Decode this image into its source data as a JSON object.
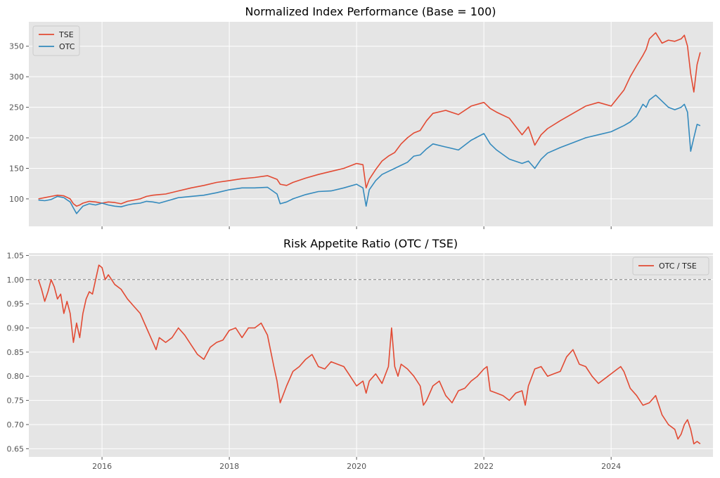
{
  "colors": {
    "tse": "#E24A33",
    "otc": "#348ABD",
    "ratio": "#E24A33",
    "plot_bg": "#E5E5E5",
    "grid": "#FFFFFF",
    "reference_line": "#808080"
  },
  "chart_data": [
    {
      "type": "line",
      "title": "Normalized Index Performance (Base = 100)",
      "xlabel": "",
      "ylabel": "",
      "x_range": [
        2014.85,
        2025.6
      ],
      "ylim": [
        55,
        390
      ],
      "y_ticks": [
        100,
        150,
        200,
        250,
        300,
        350
      ],
      "x_ticks": [
        2016,
        2018,
        2020,
        2022,
        2024
      ],
      "x_tick_labels_visible": false,
      "grid": true,
      "legend": "top-left",
      "series": [
        {
          "name": "TSE",
          "color": "#E24A33",
          "x": [
            2015.0,
            2015.1,
            2015.2,
            2015.3,
            2015.4,
            2015.5,
            2015.55,
            2015.6,
            2015.65,
            2015.7,
            2015.8,
            2015.9,
            2016.0,
            2016.1,
            2016.2,
            2016.3,
            2016.4,
            2016.5,
            2016.6,
            2016.7,
            2016.8,
            2016.9,
            2017.0,
            2017.2,
            2017.4,
            2017.6,
            2017.8,
            2018.0,
            2018.2,
            2018.4,
            2018.6,
            2018.75,
            2018.8,
            2018.9,
            2019.0,
            2019.2,
            2019.4,
            2019.6,
            2019.8,
            2020.0,
            2020.1,
            2020.15,
            2020.2,
            2020.3,
            2020.4,
            2020.5,
            2020.6,
            2020.7,
            2020.8,
            2020.9,
            2021.0,
            2021.1,
            2021.2,
            2021.4,
            2021.6,
            2021.8,
            2022.0,
            2022.1,
            2022.2,
            2022.4,
            2022.6,
            2022.7,
            2022.8,
            2022.9,
            2023.0,
            2023.2,
            2023.4,
            2023.6,
            2023.8,
            2024.0,
            2024.2,
            2024.3,
            2024.4,
            2024.5,
            2024.55,
            2024.6,
            2024.7,
            2024.8,
            2024.9,
            2025.0,
            2025.1,
            2025.15,
            2025.2,
            2025.25,
            2025.3,
            2025.35,
            2025.4
          ],
          "values": [
            100,
            102,
            104,
            106,
            105,
            100,
            92,
            88,
            90,
            93,
            96,
            95,
            93,
            95,
            94,
            92,
            96,
            98,
            100,
            104,
            106,
            107,
            108,
            113,
            118,
            122,
            127,
            130,
            133,
            135,
            138,
            132,
            124,
            122,
            127,
            134,
            140,
            145,
            150,
            158,
            156,
            118,
            132,
            148,
            162,
            170,
            176,
            190,
            200,
            208,
            212,
            228,
            240,
            245,
            238,
            252,
            258,
            248,
            242,
            232,
            205,
            218,
            188,
            205,
            215,
            228,
            240,
            252,
            258,
            252,
            278,
            300,
            318,
            335,
            345,
            362,
            372,
            355,
            360,
            358,
            362,
            368,
            350,
            305,
            275,
            320,
            340
          ]
        },
        {
          "name": "OTC",
          "color": "#348ABD",
          "x": [
            2015.0,
            2015.1,
            2015.2,
            2015.3,
            2015.4,
            2015.5,
            2015.55,
            2015.6,
            2015.65,
            2015.7,
            2015.8,
            2015.9,
            2016.0,
            2016.1,
            2016.2,
            2016.3,
            2016.4,
            2016.5,
            2016.6,
            2016.7,
            2016.8,
            2016.9,
            2017.0,
            2017.2,
            2017.4,
            2017.6,
            2017.8,
            2018.0,
            2018.2,
            2018.4,
            2018.6,
            2018.75,
            2018.8,
            2018.9,
            2019.0,
            2019.2,
            2019.4,
            2019.6,
            2019.8,
            2020.0,
            2020.1,
            2020.15,
            2020.2,
            2020.3,
            2020.4,
            2020.5,
            2020.6,
            2020.7,
            2020.8,
            2020.9,
            2021.0,
            2021.1,
            2021.2,
            2021.4,
            2021.6,
            2021.8,
            2022.0,
            2022.1,
            2022.2,
            2022.4,
            2022.6,
            2022.7,
            2022.8,
            2022.9,
            2023.0,
            2023.2,
            2023.4,
            2023.6,
            2023.8,
            2024.0,
            2024.2,
            2024.3,
            2024.4,
            2024.5,
            2024.55,
            2024.6,
            2024.7,
            2024.8,
            2024.9,
            2025.0,
            2025.1,
            2025.15,
            2025.2,
            2025.25,
            2025.3,
            2025.35,
            2025.4
          ],
          "values": [
            98,
            97,
            99,
            104,
            102,
            95,
            85,
            76,
            82,
            88,
            92,
            90,
            93,
            90,
            88,
            87,
            90,
            92,
            93,
            96,
            95,
            93,
            96,
            102,
            104,
            106,
            110,
            115,
            118,
            118,
            119,
            108,
            92,
            95,
            100,
            107,
            112,
            113,
            118,
            124,
            118,
            88,
            115,
            130,
            140,
            145,
            150,
            155,
            160,
            170,
            172,
            182,
            190,
            185,
            180,
            196,
            207,
            190,
            180,
            165,
            158,
            162,
            150,
            165,
            175,
            184,
            192,
            200,
            205,
            210,
            220,
            226,
            236,
            255,
            250,
            262,
            270,
            260,
            250,
            246,
            250,
            255,
            242,
            178,
            200,
            222,
            220
          ]
        }
      ]
    },
    {
      "type": "line",
      "title": "Risk Appetite Ratio (OTC / TSE)",
      "xlabel": "",
      "ylabel": "",
      "x_range": [
        2014.85,
        2025.6
      ],
      "ylim": [
        0.633,
        1.055
      ],
      "y_ticks": [
        0.65,
        0.7,
        0.75,
        0.8,
        0.85,
        0.9,
        0.95,
        1.0,
        1.05
      ],
      "y_tick_labels": [
        "0.65",
        "0.70",
        "0.75",
        "0.80",
        "0.85",
        "0.90",
        "0.95",
        "1.00",
        "1.05"
      ],
      "x_ticks": [
        2016,
        2018,
        2020,
        2022,
        2024
      ],
      "x_tick_labels": [
        "2016",
        "2018",
        "2020",
        "2022",
        "2024"
      ],
      "reference_line": 1.0,
      "grid": true,
      "legend": "top-right",
      "series": [
        {
          "name": "OTC / TSE",
          "color": "#E24A33",
          "x": [
            2015.0,
            2015.05,
            2015.1,
            2015.15,
            2015.2,
            2015.25,
            2015.3,
            2015.35,
            2015.4,
            2015.45,
            2015.5,
            2015.55,
            2015.6,
            2015.65,
            2015.7,
            2015.75,
            2015.8,
            2015.85,
            2015.9,
            2015.95,
            2016.0,
            2016.05,
            2016.1,
            2016.15,
            2016.2,
            2016.3,
            2016.4,
            2016.5,
            2016.6,
            2016.7,
            2016.8,
            2016.85,
            2016.9,
            2017.0,
            2017.1,
            2017.2,
            2017.3,
            2017.4,
            2017.5,
            2017.6,
            2017.7,
            2017.8,
            2017.9,
            2018.0,
            2018.1,
            2018.2,
            2018.3,
            2018.4,
            2018.5,
            2018.6,
            2018.7,
            2018.75,
            2018.8,
            2018.9,
            2019.0,
            2019.1,
            2019.2,
            2019.3,
            2019.4,
            2019.5,
            2019.6,
            2019.7,
            2019.8,
            2019.9,
            2020.0,
            2020.1,
            2020.15,
            2020.2,
            2020.3,
            2020.4,
            2020.5,
            2020.55,
            2020.6,
            2020.65,
            2020.7,
            2020.8,
            2020.9,
            2021.0,
            2021.05,
            2021.1,
            2021.2,
            2021.3,
            2021.4,
            2021.5,
            2021.6,
            2021.7,
            2021.8,
            2021.9,
            2022.0,
            2022.05,
            2022.1,
            2022.2,
            2022.3,
            2022.4,
            2022.5,
            2022.6,
            2022.65,
            2022.7,
            2022.8,
            2022.9,
            2023.0,
            2023.1,
            2023.2,
            2023.3,
            2023.4,
            2023.5,
            2023.6,
            2023.7,
            2023.8,
            2023.9,
            2024.0,
            2024.1,
            2024.15,
            2024.2,
            2024.3,
            2024.4,
            2024.5,
            2024.6,
            2024.7,
            2024.8,
            2024.9,
            2025.0,
            2025.05,
            2025.1,
            2025.15,
            2025.2,
            2025.25,
            2025.3,
            2025.35,
            2025.4
          ],
          "values": [
            1.0,
            0.98,
            0.955,
            0.975,
            1.0,
            0.985,
            0.96,
            0.97,
            0.93,
            0.955,
            0.93,
            0.87,
            0.91,
            0.88,
            0.93,
            0.96,
            0.975,
            0.97,
            1.0,
            1.03,
            1.025,
            1.0,
            1.01,
            1.0,
            0.99,
            0.98,
            0.96,
            0.945,
            0.93,
            0.9,
            0.87,
            0.855,
            0.88,
            0.87,
            0.88,
            0.9,
            0.885,
            0.865,
            0.845,
            0.835,
            0.86,
            0.87,
            0.875,
            0.895,
            0.9,
            0.88,
            0.9,
            0.9,
            0.91,
            0.885,
            0.82,
            0.79,
            0.745,
            0.78,
            0.81,
            0.82,
            0.835,
            0.845,
            0.82,
            0.815,
            0.83,
            0.825,
            0.82,
            0.8,
            0.78,
            0.79,
            0.765,
            0.79,
            0.805,
            0.785,
            0.82,
            0.9,
            0.82,
            0.8,
            0.825,
            0.815,
            0.8,
            0.78,
            0.74,
            0.75,
            0.78,
            0.79,
            0.76,
            0.745,
            0.77,
            0.775,
            0.79,
            0.8,
            0.815,
            0.82,
            0.77,
            0.765,
            0.76,
            0.75,
            0.765,
            0.77,
            0.74,
            0.78,
            0.815,
            0.82,
            0.8,
            0.805,
            0.81,
            0.84,
            0.855,
            0.825,
            0.82,
            0.8,
            0.785,
            0.795,
            0.805,
            0.815,
            0.82,
            0.81,
            0.775,
            0.76,
            0.74,
            0.745,
            0.76,
            0.72,
            0.7,
            0.69,
            0.67,
            0.68,
            0.7,
            0.71,
            0.69,
            0.66,
            0.665,
            0.66
          ]
        }
      ]
    }
  ]
}
